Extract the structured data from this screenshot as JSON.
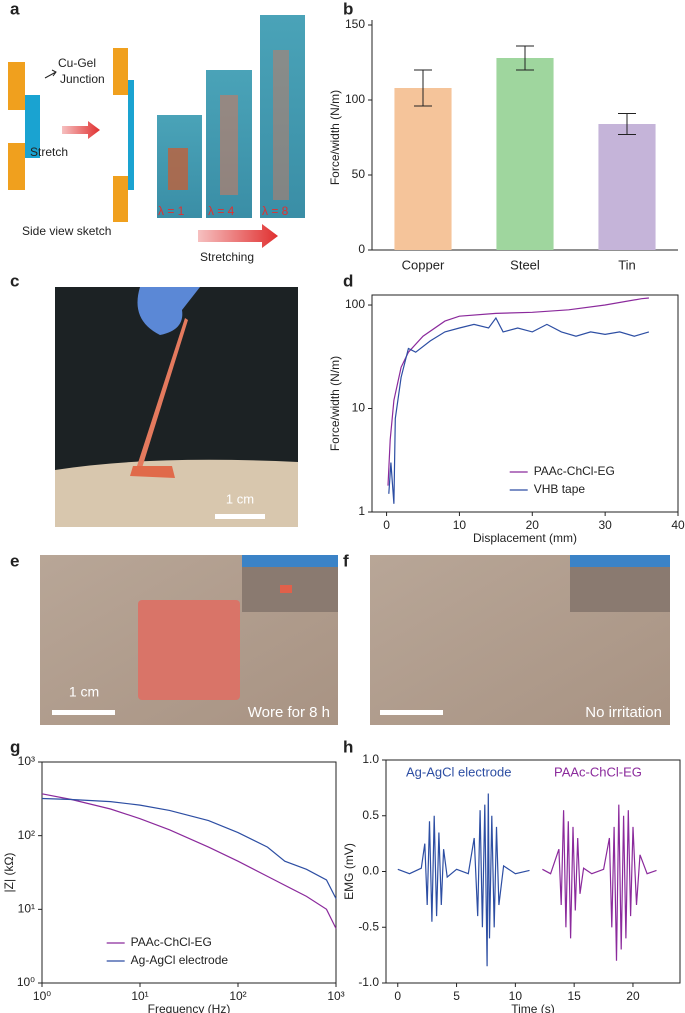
{
  "panel_letters": [
    "a",
    "b",
    "c",
    "d",
    "e",
    "f",
    "g",
    "h"
  ],
  "diagram": {
    "junction_1": "Cu-Gel",
    "junction_2": "Junction",
    "stretch": "Stretch",
    "side_view": "Side view sketch",
    "lambdas": [
      "λ = 1",
      "λ = 4",
      "λ = 8"
    ],
    "stretching": "Stretching"
  },
  "photos": {
    "c_scale": "1 cm",
    "e_scale": "1 cm",
    "e_caption": "Wore for 8 h",
    "f_caption": "No irritation"
  },
  "chart_data": [
    {
      "type": "bar",
      "ylabel": "Force/width (N/m)",
      "categories": [
        "Copper",
        "Steel",
        "Tin"
      ],
      "values": [
        108,
        128,
        84
      ],
      "errors": [
        12,
        8,
        7
      ],
      "colors": [
        "#f5c49a",
        "#9fd69e",
        "#c5b4d9"
      ],
      "ylim": [
        0,
        150
      ],
      "yticks": [
        0,
        50,
        100,
        150
      ]
    },
    {
      "type": "line",
      "xlabel": "Displacement (mm)",
      "ylabel": "Force/width (N/m)",
      "yscale": "log",
      "legend": "lower right",
      "xlim": [
        -2,
        40
      ],
      "xticks": [
        0,
        10,
        20,
        30,
        40
      ],
      "ylim": [
        1,
        125
      ],
      "yticks": [
        1,
        10,
        100
      ],
      "series": [
        {
          "name": "PAAc-ChCl-EG",
          "color": "#8b2a9c",
          "x": [
            0.2,
            0.5,
            1,
            2,
            3,
            5,
            8,
            10,
            15,
            20,
            25,
            30,
            35,
            36
          ],
          "values": [
            1.8,
            5,
            12,
            25,
            35,
            50,
            70,
            78,
            83,
            85,
            90,
            100,
            115,
            117
          ]
        },
        {
          "name": "VHB tape",
          "color": "#2d4ea3",
          "x": [
            0.3,
            0.6,
            1,
            1.2,
            2,
            3,
            4,
            6,
            8,
            10,
            12,
            14,
            15,
            16,
            18,
            20,
            22,
            24,
            26,
            28,
            30,
            32,
            34,
            36
          ],
          "values": [
            1.5,
            3,
            1.2,
            8,
            20,
            38,
            35,
            45,
            55,
            60,
            65,
            60,
            75,
            55,
            60,
            55,
            65,
            55,
            50,
            55,
            52,
            55,
            50,
            55
          ]
        }
      ]
    },
    {
      "type": "line",
      "xlabel": "Frequency (Hz)",
      "ylabel": "|Z| (kΩ)",
      "xscale": "log",
      "yscale": "log",
      "legend": "lower left",
      "xlim": [
        1,
        1000
      ],
      "xticks": [
        {
          "value": 1,
          "label": "10⁰"
        },
        {
          "value": 10,
          "label": "10¹"
        },
        {
          "value": 100,
          "label": "10²"
        },
        {
          "value": 1000,
          "label": "10³"
        }
      ],
      "ylim": [
        1,
        1000
      ],
      "yticks": [
        {
          "value": 1,
          "label": "10⁰"
        },
        {
          "value": 10,
          "label": "10¹"
        },
        {
          "value": 100,
          "label": "10²"
        },
        {
          "value": 1000,
          "label": "10³"
        }
      ],
      "series": [
        {
          "name": "PAAc-ChCl-EG",
          "color": "#8b2a9c",
          "x": [
            1,
            2,
            5,
            10,
            20,
            50,
            100,
            200,
            500,
            800,
            1000
          ],
          "values": [
            370,
            310,
            230,
            170,
            120,
            70,
            45,
            28,
            15,
            10,
            5.5
          ]
        },
        {
          "name": "Ag-AgCl electrode",
          "color": "#2d4ea3",
          "x": [
            1,
            2,
            5,
            10,
            20,
            50,
            100,
            200,
            300,
            500,
            800,
            1000
          ],
          "values": [
            320,
            310,
            290,
            260,
            220,
            160,
            110,
            70,
            45,
            35,
            25,
            14
          ]
        }
      ]
    },
    {
      "type": "line",
      "xlabel": "Time (s)",
      "ylabel": "EMG (mV)",
      "legend": "top",
      "xlim": [
        -1,
        24
      ],
      "xticks": [
        0,
        5,
        10,
        15,
        20
      ],
      "ylim": [
        -1,
        1
      ],
      "yticks": [
        {
          "value": -1,
          "label": "-1.0"
        },
        {
          "value": -0.5,
          "label": "-0.5"
        },
        {
          "value": 0,
          "label": "0.0"
        },
        {
          "value": 0.5,
          "label": "0.5"
        },
        {
          "value": 1,
          "label": "1.0"
        }
      ],
      "series": [
        {
          "name": "Ag-AgCl electrode",
          "color": "#2d4ea3",
          "x": [
            0,
            1,
            2,
            2.3,
            2.5,
            2.7,
            2.9,
            3.1,
            3.3,
            3.5,
            3.7,
            3.9,
            4.2,
            5,
            6,
            6.5,
            6.8,
            7.0,
            7.2,
            7.4,
            7.6,
            7.7,
            7.8,
            8.0,
            8.2,
            8.4,
            8.6,
            9,
            10,
            11.2
          ],
          "values": [
            0.02,
            -0.02,
            0.03,
            0.25,
            -0.3,
            0.45,
            -0.45,
            0.5,
            -0.4,
            0.35,
            -0.3,
            0.2,
            -0.05,
            0.02,
            -0.02,
            0.3,
            -0.4,
            0.55,
            -0.5,
            0.6,
            -0.85,
            0.7,
            -0.6,
            0.5,
            -0.5,
            0.4,
            -0.3,
            0.05,
            -0.02,
            0.01
          ]
        },
        {
          "name": "PAAc-ChCl-EG",
          "color": "#8b2a9c",
          "x": [
            12.3,
            13,
            13.7,
            13.9,
            14.1,
            14.3,
            14.5,
            14.7,
            14.9,
            15.1,
            15.3,
            15.5,
            15.8,
            16.5,
            17.5,
            18,
            18.2,
            18.4,
            18.6,
            18.8,
            19.0,
            19.2,
            19.4,
            19.6,
            19.8,
            20.0,
            20.3,
            20.6,
            21.2,
            22
          ],
          "values": [
            0.02,
            -0.02,
            0.2,
            -0.3,
            0.55,
            -0.5,
            0.45,
            -0.6,
            0.4,
            -0.35,
            0.3,
            -0.2,
            0.03,
            -0.02,
            0.02,
            0.3,
            -0.5,
            0.4,
            -0.8,
            0.6,
            -0.7,
            0.5,
            -0.6,
            0.55,
            -0.4,
            0.4,
            -0.3,
            0.15,
            -0.02,
            0.01
          ]
        }
      ]
    }
  ]
}
